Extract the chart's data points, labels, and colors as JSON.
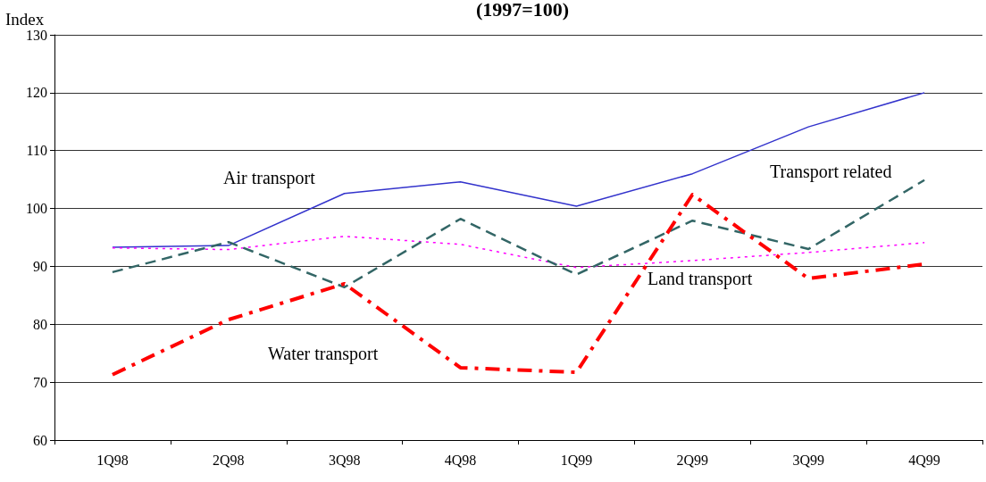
{
  "chart_data": {
    "type": "line",
    "title": "(1997=100)",
    "ylabel": "Index",
    "categories": [
      "1Q98",
      "2Q98",
      "3Q98",
      "4Q98",
      "1Q99",
      "2Q99",
      "3Q99",
      "4Q99"
    ],
    "series": [
      {
        "name": "Air transport",
        "color": "#3333cc",
        "line_style": "solid",
        "values": [
          93.3,
          93.6,
          102.6,
          104.6,
          100.4,
          106,
          114.1,
          120
        ]
      },
      {
        "name": "Land transport",
        "color": "#ff00ff",
        "line_style": "dotted",
        "values": [
          93.2,
          92.9,
          95.2,
          93.8,
          89.8,
          91,
          92.4,
          94.1
        ]
      },
      {
        "name": "Transport related",
        "color": "#336666",
        "line_style": "dashed",
        "values": [
          89,
          94.2,
          86.4,
          98.2,
          88.6,
          97.9,
          93,
          104.9
        ]
      },
      {
        "name": "Water transport",
        "color": "#ff0000",
        "line_style": "dashed",
        "values": [
          71.3,
          80.8,
          87,
          72.5,
          71.7,
          102.4,
          87.9,
          90.4
        ]
      }
    ],
    "ylim": [
      60,
      130
    ],
    "yticks": [
      60,
      70,
      80,
      90,
      100,
      110,
      120,
      130
    ],
    "grid": "y",
    "legend": false,
    "marker": "none"
  }
}
